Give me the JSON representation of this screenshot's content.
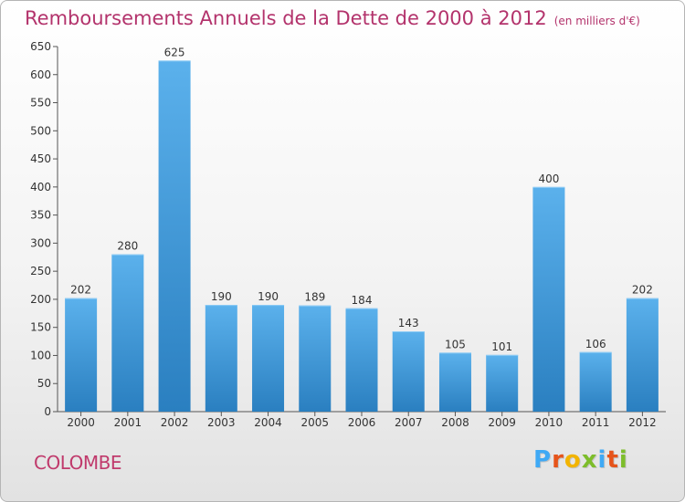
{
  "title": "Remboursements Annuels de la Dette de 2000 à 2012",
  "subtitle": "(en milliers d'€)",
  "commune": "COLOMBE",
  "logo": {
    "letters": [
      "P",
      "r",
      "o",
      "x",
      "i",
      "t",
      "i"
    ],
    "colors": [
      "#3fa9f5",
      "#e6541a",
      "#f2b400",
      "#7dbd2b",
      "#3fa9f5",
      "#e6541a",
      "#7dbd2b"
    ]
  },
  "colors": {
    "bar_light": "#5bb1ec",
    "bar_dark": "#2a7fc0",
    "title": "#b3336c",
    "axis_text": "#333333"
  },
  "chart_data": {
    "type": "bar",
    "title": "Remboursements Annuels de la Dette de 2000 à 2012",
    "subtitle": "(en milliers d'€)",
    "categories": [
      "2000",
      "2001",
      "2002",
      "2003",
      "2004",
      "2005",
      "2006",
      "2007",
      "2008",
      "2009",
      "2010",
      "2011",
      "2012"
    ],
    "values": [
      202,
      280,
      625,
      190,
      190,
      189,
      184,
      143,
      105,
      101,
      400,
      106,
      202
    ],
    "data_labels": [
      "202",
      "280",
      "625",
      "190",
      "190",
      "189",
      "184",
      "143",
      "105",
      "101",
      "400",
      "106",
      "202"
    ],
    "ylim": [
      0,
      650
    ],
    "yticks": [
      0,
      50,
      100,
      150,
      200,
      250,
      300,
      350,
      400,
      450,
      500,
      550,
      600,
      650
    ],
    "grid": false
  }
}
